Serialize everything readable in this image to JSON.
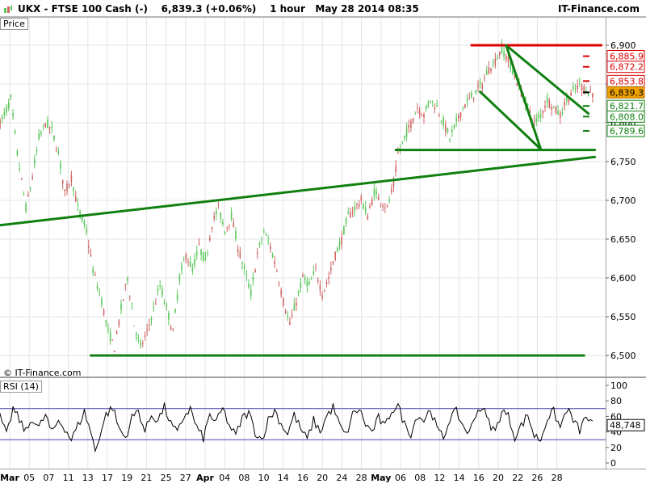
{
  "header": {
    "title": "UKX - FTSE 100 Cash (-)    6,839.3 (+0.06%)    1 hour   May 28 2014 08:35",
    "brand": "IT-Finance.com"
  },
  "pane_labels": {
    "price": "Price",
    "rsi": "RSI (14)"
  },
  "credit": "© IT-Finance.com",
  "colors": {
    "up": "#5ac85a",
    "down": "#d26464",
    "trend": "#108010",
    "resistance": "#dd0000",
    "rsi_line": "#000000",
    "rsi_band": "#4444aa",
    "grid": "#e4e4e4",
    "current": "#f0a000"
  },
  "chart_data": [
    {
      "type": "candlestick",
      "title": "UKX - FTSE 100 Cash (-)",
      "interval": "1 hour",
      "last": 6839.3,
      "change_pct": "+0.06%",
      "ylim": [
        6480,
        6920
      ],
      "y_ticks": [
        6500,
        6550,
        6600,
        6650,
        6700,
        6750,
        6800,
        6850,
        6900
      ],
      "y_tick_labels": [
        "6,500",
        "6,550",
        "6,600",
        "6,650",
        "6,700",
        "6,750",
        "6,800",
        "6,850",
        "6,900"
      ],
      "x_ticks": [
        "Mar",
        "05",
        "07",
        "11",
        "13",
        "17",
        "19",
        "21",
        "25",
        "27",
        "Apr",
        "04",
        "08",
        "10",
        "14",
        "16",
        "20",
        "24",
        "28",
        "May",
        "06",
        "08",
        "12",
        "14",
        "16",
        "20",
        "22",
        "26",
        "28"
      ],
      "path": [
        [
          0,
          6800
        ],
        [
          2,
          6810
        ],
        [
          5,
          6830
        ],
        [
          8,
          6760
        ],
        [
          12,
          6690
        ],
        [
          15,
          6730
        ],
        [
          18,
          6780
        ],
        [
          21,
          6800
        ],
        [
          24,
          6790
        ],
        [
          27,
          6760
        ],
        [
          30,
          6710
        ],
        [
          33,
          6730
        ],
        [
          36,
          6690
        ],
        [
          40,
          6660
        ],
        [
          43,
          6610
        ],
        [
          47,
          6570
        ],
        [
          50,
          6530
        ],
        [
          53,
          6510
        ],
        [
          56,
          6560
        ],
        [
          59,
          6600
        ],
        [
          62,
          6540
        ],
        [
          65,
          6510
        ],
        [
          68,
          6530
        ],
        [
          71,
          6560
        ],
        [
          74,
          6590
        ],
        [
          77,
          6560
        ],
        [
          80,
          6530
        ],
        [
          83,
          6600
        ],
        [
          86,
          6630
        ],
        [
          89,
          6610
        ],
        [
          92,
          6640
        ],
        [
          95,
          6620
        ],
        [
          98,
          6670
        ],
        [
          101,
          6690
        ],
        [
          104,
          6660
        ],
        [
          107,
          6680
        ],
        [
          110,
          6640
        ],
        [
          113,
          6610
        ],
        [
          116,
          6580
        ],
        [
          119,
          6630
        ],
        [
          122,
          6660
        ],
        [
          125,
          6640
        ],
        [
          128,
          6610
        ],
        [
          131,
          6570
        ],
        [
          134,
          6540
        ],
        [
          137,
          6570
        ],
        [
          140,
          6600
        ],
        [
          143,
          6590
        ],
        [
          146,
          6610
        ],
        [
          149,
          6580
        ],
        [
          152,
          6600
        ],
        [
          155,
          6630
        ],
        [
          158,
          6650
        ],
        [
          161,
          6680
        ],
        [
          164,
          6690
        ],
        [
          167,
          6700
        ],
        [
          170,
          6680
        ],
        [
          173,
          6710
        ],
        [
          176,
          6700
        ],
        [
          179,
          6690
        ],
        [
          182,
          6720
        ],
        [
          184,
          6760
        ],
        [
          187,
          6780
        ],
        [
          190,
          6800
        ],
        [
          193,
          6820
        ],
        [
          196,
          6810
        ],
        [
          199,
          6830
        ],
        [
          202,
          6820
        ],
        [
          205,
          6800
        ],
        [
          208,
          6780
        ],
        [
          211,
          6800
        ],
        [
          214,
          6820
        ],
        [
          217,
          6830
        ],
        [
          220,
          6840
        ],
        [
          223,
          6850
        ],
        [
          226,
          6870
        ],
        [
          229,
          6880
        ],
        [
          232,
          6895
        ],
        [
          235,
          6880
        ],
        [
          238,
          6860
        ],
        [
          241,
          6840
        ],
        [
          244,
          6820
        ],
        [
          247,
          6800
        ],
        [
          250,
          6810
        ],
        [
          253,
          6830
        ],
        [
          256,
          6820
        ],
        [
          259,
          6810
        ],
        [
          262,
          6830
        ],
        [
          265,
          6840
        ],
        [
          268,
          6850
        ],
        [
          270,
          6845
        ],
        [
          272,
          6839.3
        ]
      ],
      "trendlines": {
        "support_rising": [
          [
            0,
            6668
          ],
          [
            275,
            6756
          ]
        ],
        "support_flat_low": [
          [
            42,
            6500
          ],
          [
            270,
            6500
          ]
        ],
        "support_flat_mid": [
          [
            183,
            6765
          ],
          [
            275,
            6765
          ]
        ],
        "channel_upper": [
          [
            234,
            6900
          ],
          [
            272,
            6812
          ]
        ],
        "channel_lower": [
          [
            222,
            6840
          ],
          [
            250,
            6766
          ]
        ],
        "resistance": [
          [
            218,
            6900
          ],
          [
            278,
            6900
          ]
        ]
      },
      "price_levels": [
        {
          "label": "6,885.9",
          "value": 6885.9,
          "kind": "resistance"
        },
        {
          "label": "6,872.2",
          "value": 6872.2,
          "kind": "resistance"
        },
        {
          "label": "6,853.8",
          "value": 6853.8,
          "kind": "resistance"
        },
        {
          "label": "6,839.3",
          "value": 6839.3,
          "kind": "current"
        },
        {
          "label": "6,821.7",
          "value": 6821.7,
          "kind": "support"
        },
        {
          "label": "6,808.0",
          "value": 6808.0,
          "kind": "support"
        },
        {
          "label": "6,789.6",
          "value": 6789.6,
          "kind": "support"
        }
      ]
    },
    {
      "type": "line",
      "title": "RSI (14)",
      "ylim": [
        -5,
        100
      ],
      "y_ticks": [
        0,
        20,
        40,
        60,
        80,
        100
      ],
      "bands": [
        30,
        70
      ],
      "last": 48.748,
      "last_label": "48,748",
      "path": [
        [
          0,
          60
        ],
        [
          3,
          35
        ],
        [
          6,
          70
        ],
        [
          9,
          55
        ],
        [
          12,
          40
        ],
        [
          15,
          58
        ],
        [
          18,
          45
        ],
        [
          21,
          62
        ],
        [
          24,
          38
        ],
        [
          27,
          55
        ],
        [
          30,
          45
        ],
        [
          33,
          30
        ],
        [
          36,
          48
        ],
        [
          39,
          66
        ],
        [
          42,
          40
        ],
        [
          44,
          15
        ],
        [
          46,
          35
        ],
        [
          49,
          62
        ],
        [
          52,
          72
        ],
        [
          55,
          45
        ],
        [
          58,
          32
        ],
        [
          61,
          58
        ],
        [
          64,
          68
        ],
        [
          67,
          40
        ],
        [
          70,
          62
        ],
        [
          73,
          55
        ],
        [
          76,
          72
        ],
        [
          79,
          50
        ],
        [
          82,
          38
        ],
        [
          85,
          60
        ],
        [
          88,
          70
        ],
        [
          91,
          45
        ],
        [
          94,
          32
        ],
        [
          97,
          62
        ],
        [
          100,
          52
        ],
        [
          103,
          70
        ],
        [
          106,
          48
        ],
        [
          109,
          35
        ],
        [
          112,
          58
        ],
        [
          115,
          65
        ],
        [
          118,
          40
        ],
        [
          121,
          30
        ],
        [
          124,
          55
        ],
        [
          127,
          68
        ],
        [
          130,
          50
        ],
        [
          133,
          38
        ],
        [
          136,
          62
        ],
        [
          139,
          44
        ],
        [
          142,
          30
        ],
        [
          145,
          55
        ],
        [
          148,
          40
        ],
        [
          151,
          60
        ],
        [
          154,
          72
        ],
        [
          157,
          48
        ],
        [
          160,
          35
        ],
        [
          163,
          62
        ],
        [
          166,
          70
        ],
        [
          169,
          50
        ],
        [
          172,
          40
        ],
        [
          175,
          58
        ],
        [
          178,
          46
        ],
        [
          181,
          68
        ],
        [
          184,
          74
        ],
        [
          187,
          50
        ],
        [
          190,
          38
        ],
        [
          193,
          62
        ],
        [
          196,
          55
        ],
        [
          199,
          70
        ],
        [
          202,
          44
        ],
        [
          205,
          32
        ],
        [
          208,
          58
        ],
        [
          211,
          66
        ],
        [
          214,
          48
        ],
        [
          217,
          38
        ],
        [
          220,
          65
        ],
        [
          223,
          72
        ],
        [
          226,
          52
        ],
        [
          229,
          40
        ],
        [
          232,
          68
        ],
        [
          235,
          60
        ],
        [
          238,
          34
        ],
        [
          241,
          48
        ],
        [
          244,
          62
        ],
        [
          247,
          35
        ],
        [
          250,
          30
        ],
        [
          253,
          58
        ],
        [
          256,
          66
        ],
        [
          259,
          45
        ],
        [
          262,
          70
        ],
        [
          265,
          55
        ],
        [
          268,
          42
        ],
        [
          271,
          60
        ],
        [
          274,
          48.748
        ]
      ]
    }
  ]
}
